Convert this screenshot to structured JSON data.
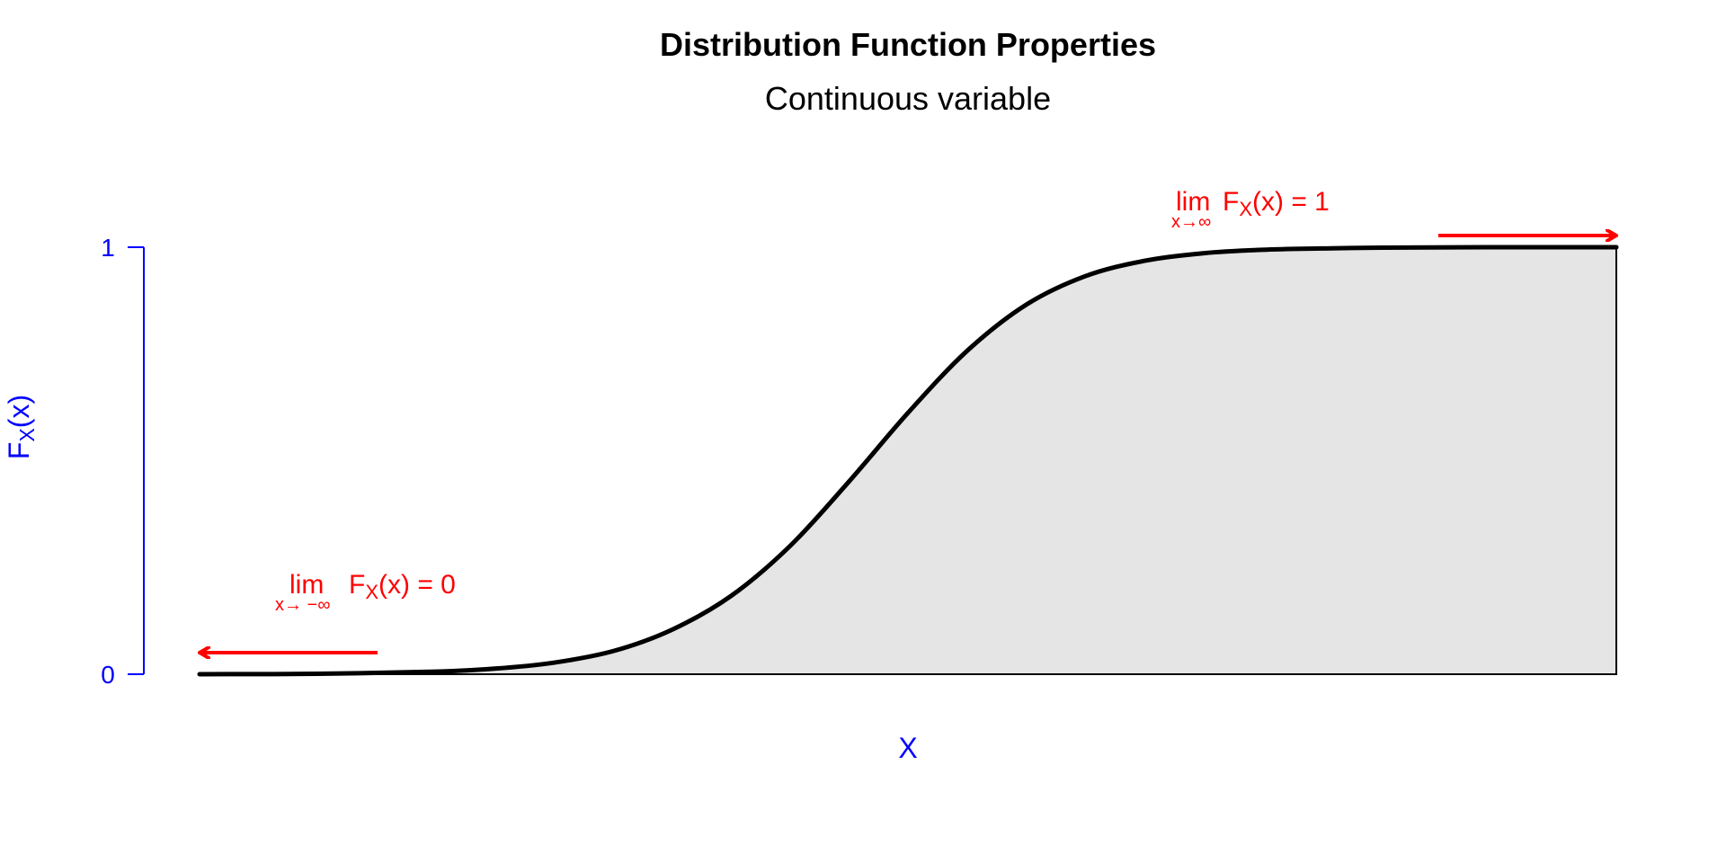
{
  "chart_data": {
    "type": "area",
    "title": "Distribution Function Properties",
    "subtitle": "Continuous variable",
    "xlabel": "X",
    "ylabel": {
      "main": "F",
      "sub": "X",
      "tail": "(x)"
    },
    "ylim": [
      0,
      1
    ],
    "y_ticks": [
      0,
      1
    ],
    "y_tick_labels": [
      "0",
      "1"
    ],
    "x_ticks_shown": false,
    "grid": false,
    "legend": "none",
    "curve": {
      "x": [
        -6.0,
        -5.0,
        -4.0,
        -3.5,
        -3.0,
        -2.5,
        -2.0,
        -1.5,
        -1.0,
        -0.5,
        0.0,
        0.5,
        1.0,
        1.5,
        2.0,
        2.5,
        3.0,
        3.5,
        4.0,
        5.0,
        6.0
      ],
      "y": [
        0.0,
        0.001,
        0.006,
        0.013,
        0.027,
        0.054,
        0.104,
        0.183,
        0.3,
        0.451,
        0.612,
        0.757,
        0.865,
        0.932,
        0.968,
        0.986,
        0.994,
        0.997,
        0.999,
        1.0,
        1.0
      ]
    },
    "annotations": {
      "left": {
        "prefix": "lim",
        "under": "x→ −∞",
        "func": "F",
        "func_sub": "X",
        "rest": "(x) = 0",
        "arrow_direction": "left"
      },
      "right": {
        "prefix": "lim",
        "under": "x→∞",
        "func": "F",
        "func_sub": "X",
        "rest": "(x) = 1",
        "arrow_direction": "right"
      }
    },
    "colors": {
      "curve": "#000000",
      "fill": "#e5e5e5",
      "axis": "#0000ff",
      "annotation": "#ff0000"
    }
  }
}
